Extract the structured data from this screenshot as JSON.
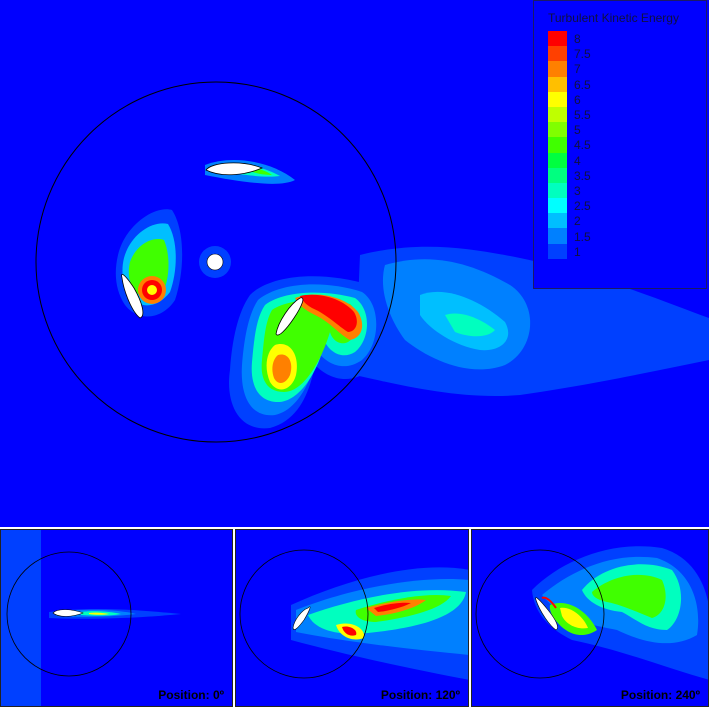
{
  "legend": {
    "title": "Turbulent Kinetic Energy",
    "labels": [
      "8",
      "7.5",
      "7",
      "6.5",
      "6",
      "5.5",
      "5",
      "4.5",
      "4",
      "3.5",
      "3",
      "2.5",
      "2",
      "1.5",
      "1"
    ],
    "colors": [
      "#ff0000",
      "#ff4000",
      "#ff8000",
      "#ffbf00",
      "#ffff00",
      "#bfff00",
      "#80ff00",
      "#40ff00",
      "#00ff40",
      "#00ff80",
      "#00ffbf",
      "#00ffff",
      "#00bfff",
      "#0080ff",
      "#0040ff"
    ]
  },
  "colors": {
    "background": "#0000ff",
    "low": "#0040ff",
    "mid_low": "#0080ff",
    "mid": "#00ffbf",
    "green": "#40ff00",
    "yellow": "#ffff00",
    "orange": "#ff8000",
    "high": "#ff0000",
    "blade": "#ffffff",
    "outline": "#000000"
  },
  "panels": [
    {
      "label": "Position: 0º"
    },
    {
      "label": "Position: 120º"
    },
    {
      "label": "Position: 240º"
    }
  ]
}
